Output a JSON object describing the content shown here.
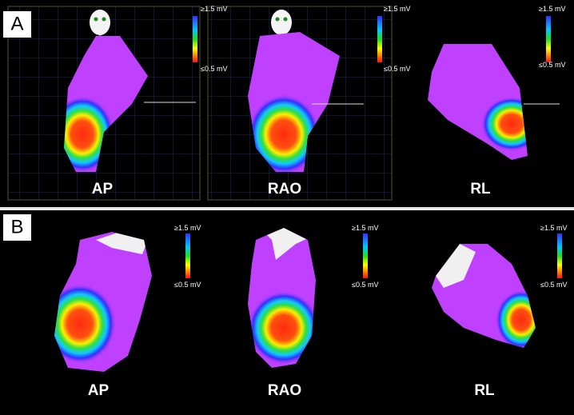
{
  "panels": [
    {
      "label": "A",
      "views": [
        {
          "name": "AP",
          "scale_max": "≥1.5 mV",
          "scale_min": "≤0.5 mV"
        },
        {
          "name": "RAO",
          "scale_max": "≥1.5 mV",
          "scale_min": "≤0.5 mV"
        },
        {
          "name": "RL",
          "scale_max": "≥1.5 mV",
          "scale_min": "≤0.5 mV"
        }
      ]
    },
    {
      "label": "B",
      "views": [
        {
          "name": "AP",
          "scale_max": "≥1.5 mV",
          "scale_min": "≤0.5 mV"
        },
        {
          "name": "RAO",
          "scale_max": "≥1.5 mV",
          "scale_min": "≤0.5 mV"
        },
        {
          "name": "RL",
          "scale_max": "≥1.5 mV",
          "scale_min": "≤0.5 mV"
        }
      ]
    }
  ]
}
